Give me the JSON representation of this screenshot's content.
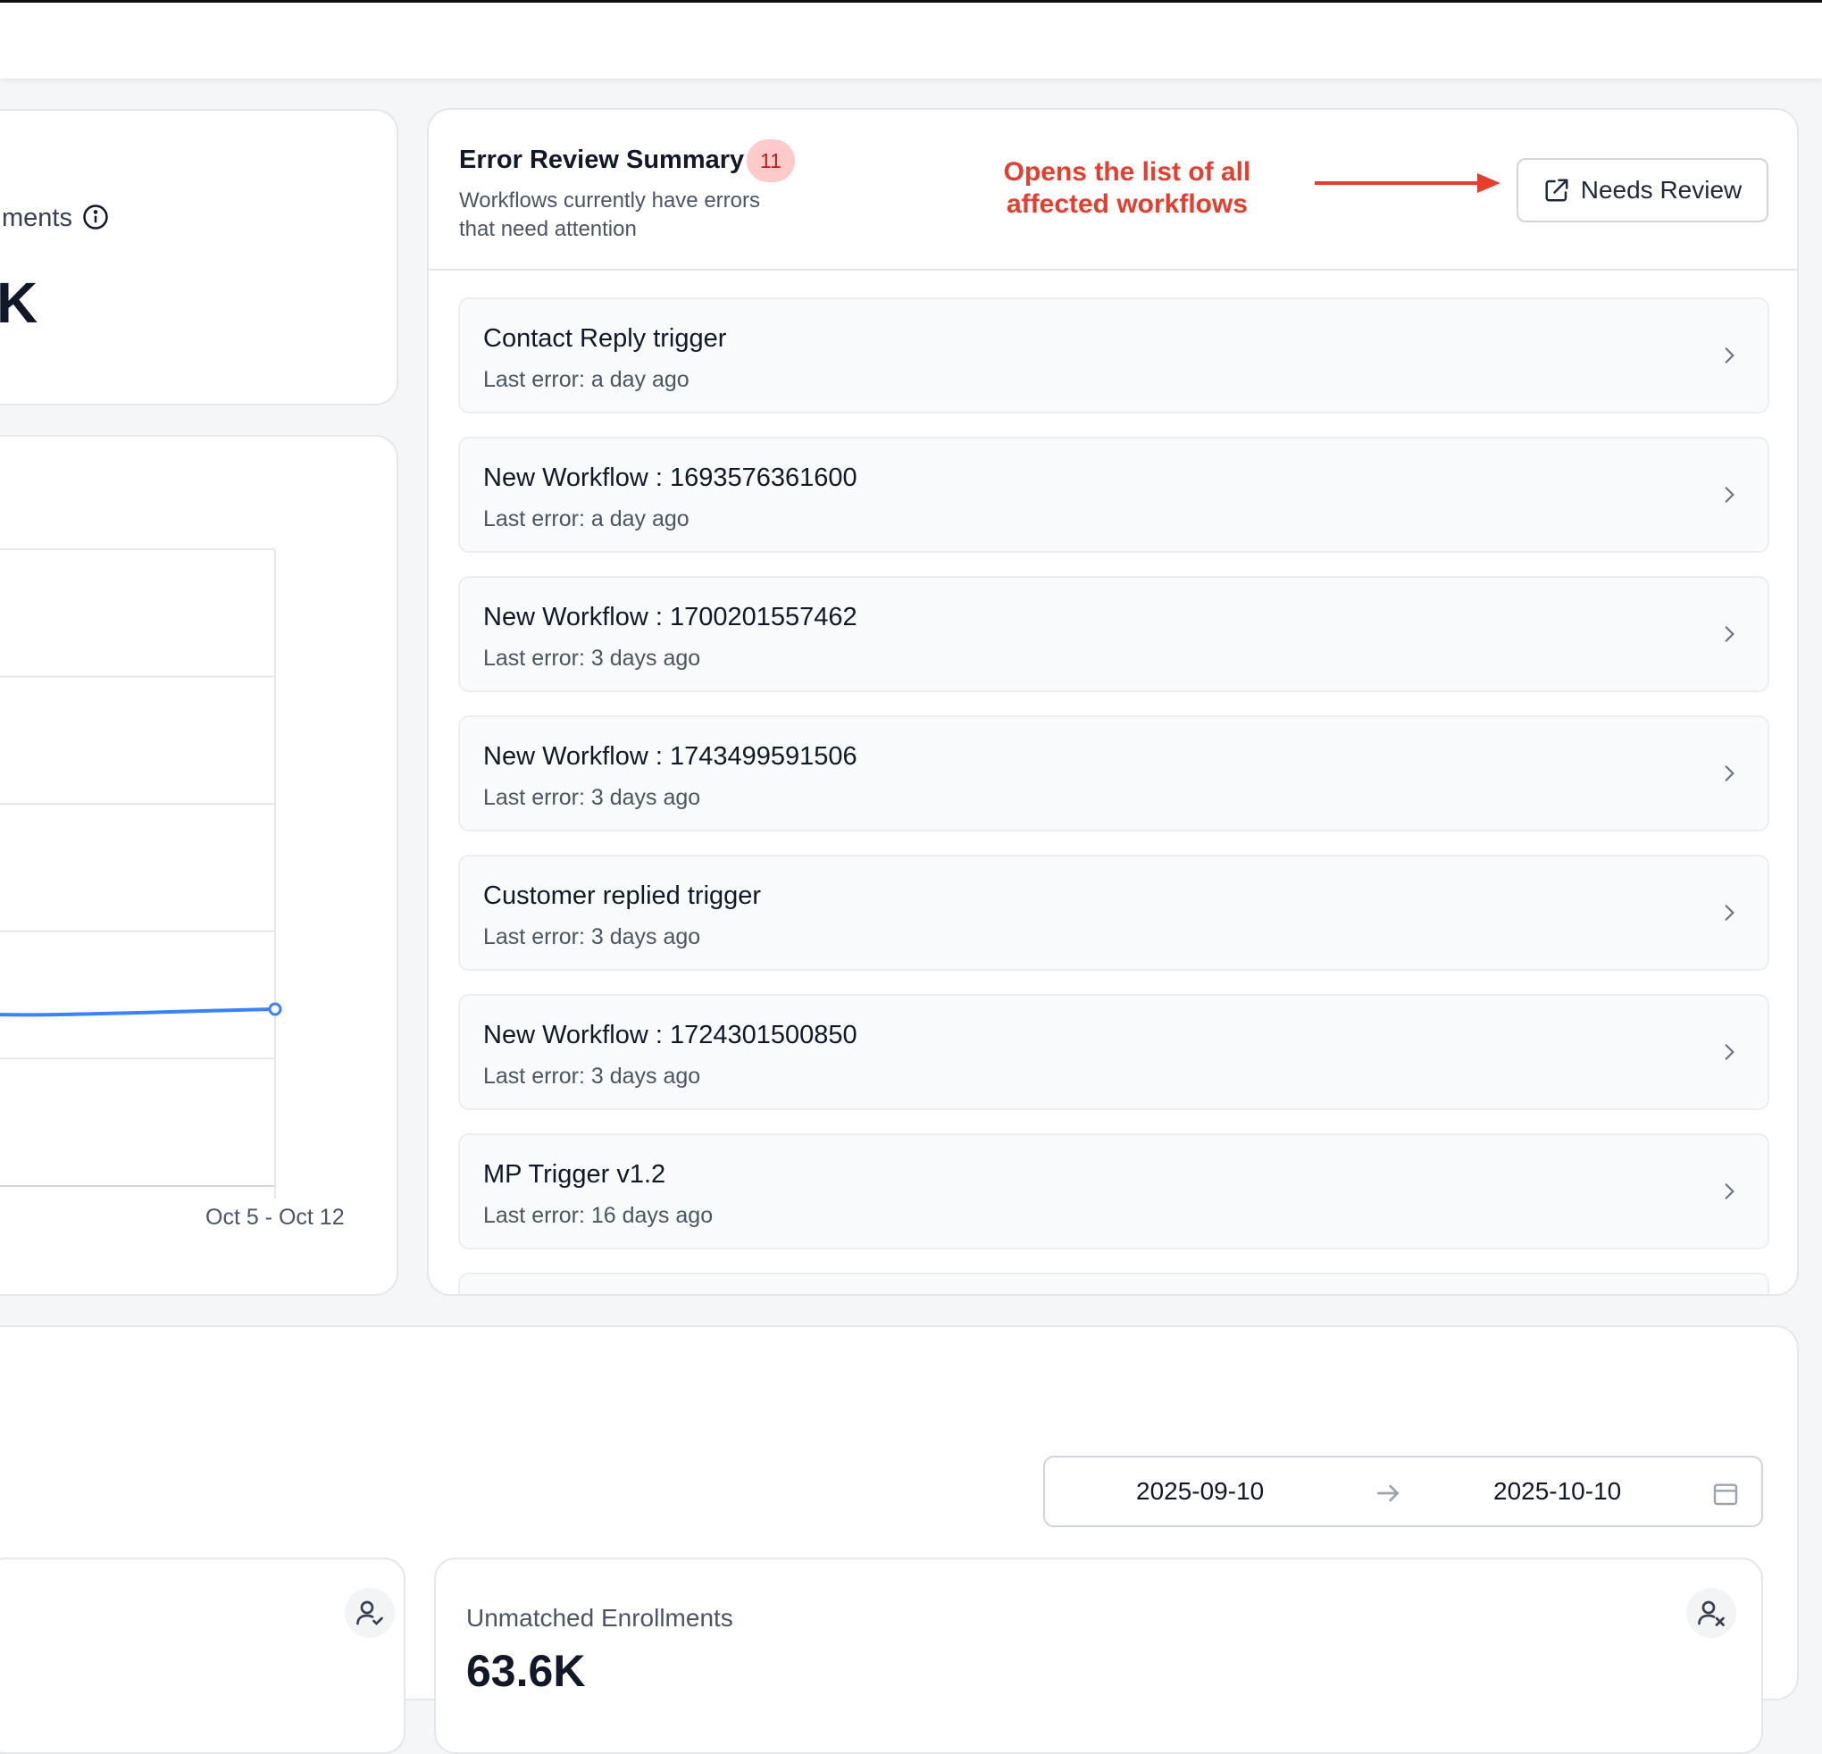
{
  "stat_card": {
    "label_partial": "ments",
    "value_partial": "K"
  },
  "chart": {
    "chart_data": {
      "type": "line",
      "x": [
        "Oct 5 - Oct 12"
      ],
      "series": [
        {
          "values": [
            null
          ]
        }
      ],
      "tick_labels": [
        "Oct 5 - Oct 12"
      ],
      "grid": true,
      "color": "#3b82f6"
    }
  },
  "error_summary": {
    "title": "Error Review Summary",
    "count_badge": "11",
    "subtitle": "Workflows currently have errors that need attention",
    "annotation": "Opens the list of all affected workflows",
    "needs_review_label": "Needs Review",
    "items": [
      {
        "name": "Contact Reply trigger",
        "last_error": "Last error: a day ago"
      },
      {
        "name": "New Workflow : 1693576361600",
        "last_error": "Last error: a day ago"
      },
      {
        "name": "New Workflow : 1700201557462",
        "last_error": "Last error: 3 days ago"
      },
      {
        "name": "New Workflow : 1743499591506",
        "last_error": "Last error: 3 days ago"
      },
      {
        "name": "Customer replied trigger",
        "last_error": "Last error: 3 days ago"
      },
      {
        "name": "New Workflow : 1724301500850",
        "last_error": "Last error: 3 days ago"
      },
      {
        "name": "MP Trigger v1.2",
        "last_error": "Last error: 16 days ago"
      }
    ]
  },
  "date_range": {
    "start": "2025-09-10",
    "end": "2025-10-10"
  },
  "unmatched": {
    "label": "Unmatched Enrollments",
    "value": "63.6K"
  },
  "colors": {
    "accent": "#3b82f6",
    "annotation": "#e53e2e",
    "badge_bg": "#fecaca",
    "badge_text": "#b91c1c"
  }
}
